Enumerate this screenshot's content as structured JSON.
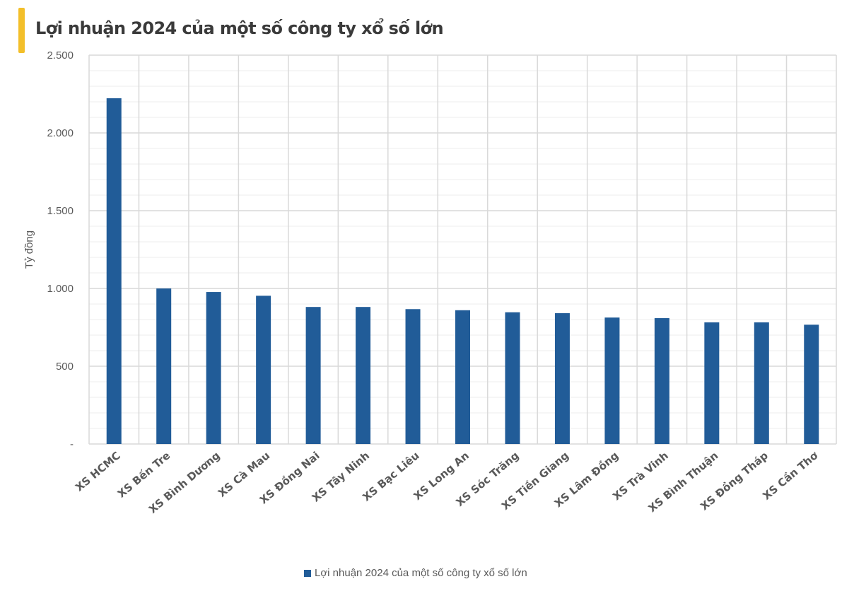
{
  "title": "Lợi nhuận 2024 của một số công ty xổ số lớn",
  "colors": {
    "bar": "#215c98",
    "accent": "#f3bf2a",
    "grid": "#d9d9d9",
    "grid_minor": "#ececec"
  },
  "chart_data": {
    "type": "bar",
    "title": "Lợi nhuận 2024 của một số công ty xổ số lớn",
    "xlabel": "",
    "ylabel": "Tỷ đồng",
    "ylim": [
      0,
      2500
    ],
    "yticks": [
      0,
      500,
      1000,
      1500,
      2000,
      2500
    ],
    "ytick_labels": [
      "-",
      "500",
      "1.000",
      "1.500",
      "2.000",
      "2.500"
    ],
    "minor_step": 100,
    "grid": true,
    "legend_position": "bottom",
    "categories": [
      "XS HCMC",
      "XS Bến Tre",
      "XS Bình Dương",
      "XS Cà Mau",
      "XS Đồng Nai",
      "XS Tây Ninh",
      "XS Bạc Liêu",
      "XS Long An",
      "XS Sóc Trăng",
      "XS Tiền Giang",
      "XS Lâm Đồng",
      "XS Trà Vinh",
      "XS Bình Thuận",
      "XS Đồng Tháp",
      "XS Cần Thơ"
    ],
    "series": [
      {
        "name": "Lợi nhuận 2024 của một số công ty xổ số lớn",
        "values": [
          2223,
          1000,
          977,
          953,
          881,
          881,
          867,
          860,
          847,
          841,
          813,
          809,
          782,
          782,
          767
        ]
      }
    ]
  },
  "legend": {
    "label": "Lợi nhuận 2024 của một số công ty xổ số lớn"
  }
}
